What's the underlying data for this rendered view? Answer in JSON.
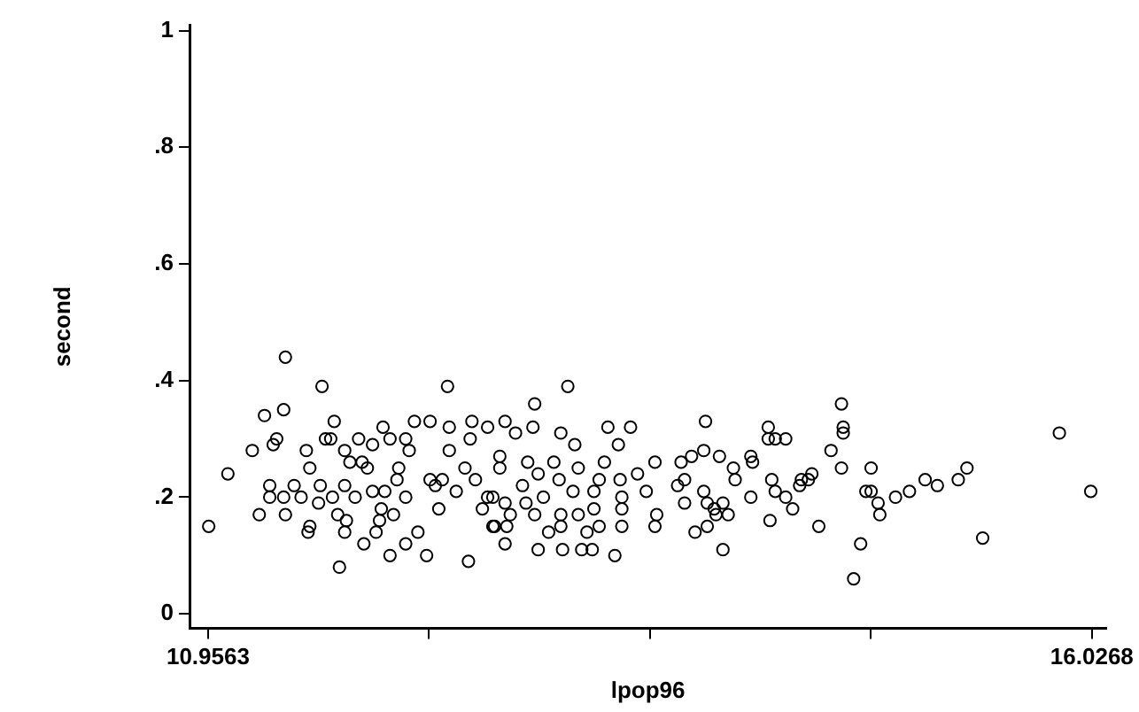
{
  "chart_data": {
    "type": "scatter",
    "xlabel": "lpop96",
    "ylabel": "second",
    "color": "#000000",
    "marker": "circle",
    "grid": false,
    "xlim": [
      10.85,
      16.11
    ],
    "ylim": [
      -0.025,
      1.01
    ],
    "xticks": [
      10.9563,
      {
        "value": 12.2239,
        "label": null
      },
      {
        "value": 13.4916,
        "label": null
      },
      {
        "value": 14.7592,
        "label": null
      },
      16.0268
    ],
    "yticks": [
      0,
      {
        "value": 0.2,
        "label": ".2"
      },
      {
        "value": 0.4,
        "label": ".4"
      },
      {
        "value": 0.6,
        "label": ".6"
      },
      {
        "value": 0.8,
        "label": ".8"
      },
      1
    ],
    "x": [
      10.96,
      11.07,
      11.21,
      11.28,
      11.39,
      11.4,
      11.25,
      11.31,
      11.31,
      11.35,
      11.33,
      11.4,
      11.39,
      11.61,
      11.68,
      11.71,
      11.54,
      11.53,
      11.45,
      11.52,
      11.54,
      11.6,
      11.63,
      11.66,
      11.74,
      11.75,
      11.7,
      11.74,
      11.77,
      11.82,
      11.84,
      11.87,
      11.9,
      11.85,
      11.92,
      11.94,
      11.96,
      12.0,
      12.05,
      12.09,
      12.11,
      12.09,
      12.14,
      12.23,
      12.33,
      12.34,
      12.34,
      12.0,
      12.09,
      12.21,
      12.16,
      12.45,
      12.46,
      12.47,
      12.43,
      12.38,
      12.28,
      12.26,
      12.53,
      12.59,
      12.56,
      12.63,
      11.8,
      11.74,
      11.9,
      11.97,
      12.04,
      11.95,
      12.02,
      12.23,
      12.3,
      12.49,
      12.56,
      11.59,
      11.67,
      11.49,
      13.02,
      12.83,
      12.66,
      12.72,
      12.82,
      12.98,
      13.06,
      13.25,
      13.38,
      13.31,
      13.23,
      13.52,
      12.94,
      12.79,
      12.63,
      12.76,
      12.85,
      12.97,
      13.08,
      13.2,
      13.32,
      13.42,
      13.47,
      13.33,
      13.17,
      13.05,
      12.88,
      12.78,
      12.66,
      12.59,
      12.69,
      12.83,
      12.98,
      13.08,
      13.17,
      12.6,
      12.67,
      12.91,
      12.98,
      13.13,
      13.2,
      13.33,
      13.33,
      12.66,
      12.85,
      12.99,
      13.1,
      13.16,
      13.29,
      13.53,
      13.52,
      13.69,
      13.65,
      13.67,
      13.69,
      13.73,
      13.8,
      13.81,
      13.89,
      13.8,
      13.82,
      13.86,
      13.91,
      13.94,
      13.87,
      13.82,
      13.75,
      13.91,
      13.97,
      13.98,
      14.07,
      14.08,
      14.07,
      14.17,
      14.17,
      14.21,
      14.27,
      14.19,
      14.21,
      14.27,
      14.31,
      14.18,
      14.35,
      14.4,
      14.59,
      14.6,
      14.6,
      14.53,
      14.59,
      14.76,
      14.42,
      14.36,
      14.73,
      14.76,
      14.8,
      14.81,
      14.9,
      14.98,
      15.07,
      15.14,
      15.26,
      15.31,
      14.46,
      14.7,
      14.66,
      15.4,
      15.84,
      16.02
    ],
    "values": [
      0.15,
      0.24,
      0.28,
      0.34,
      0.35,
      0.44,
      0.17,
      0.22,
      0.2,
      0.3,
      0.29,
      0.17,
      0.2,
      0.39,
      0.33,
      0.08,
      0.15,
      0.14,
      0.22,
      0.28,
      0.25,
      0.22,
      0.3,
      0.3,
      0.28,
      0.16,
      0.17,
      0.14,
      0.26,
      0.3,
      0.26,
      0.25,
      0.29,
      0.12,
      0.14,
      0.16,
      0.32,
      0.3,
      0.25,
      0.2,
      0.28,
      0.3,
      0.33,
      0.33,
      0.39,
      0.28,
      0.32,
      0.1,
      0.12,
      0.1,
      0.14,
      0.09,
      0.3,
      0.33,
      0.25,
      0.21,
      0.18,
      0.22,
      0.18,
      0.15,
      0.32,
      0.27,
      0.2,
      0.22,
      0.21,
      0.21,
      0.23,
      0.18,
      0.17,
      0.23,
      0.23,
      0.23,
      0.2,
      0.19,
      0.2,
      0.2,
      0.39,
      0.36,
      0.33,
      0.31,
      0.32,
      0.31,
      0.29,
      0.32,
      0.32,
      0.29,
      0.26,
      0.26,
      0.26,
      0.26,
      0.25,
      0.22,
      0.24,
      0.23,
      0.25,
      0.23,
      0.23,
      0.24,
      0.21,
      0.2,
      0.21,
      0.21,
      0.2,
      0.19,
      0.19,
      0.2,
      0.17,
      0.17,
      0.17,
      0.17,
      0.18,
      0.15,
      0.15,
      0.14,
      0.15,
      0.14,
      0.15,
      0.15,
      0.18,
      0.12,
      0.11,
      0.11,
      0.11,
      0.11,
      0.1,
      0.17,
      0.15,
      0.19,
      0.22,
      0.26,
      0.23,
      0.27,
      0.28,
      0.33,
      0.27,
      0.21,
      0.19,
      0.18,
      0.19,
      0.17,
      0.17,
      0.15,
      0.14,
      0.11,
      0.25,
      0.23,
      0.27,
      0.26,
      0.2,
      0.32,
      0.3,
      0.3,
      0.3,
      0.23,
      0.21,
      0.2,
      0.18,
      0.16,
      0.22,
      0.23,
      0.36,
      0.32,
      0.31,
      0.28,
      0.25,
      0.25,
      0.24,
      0.23,
      0.21,
      0.21,
      0.19,
      0.17,
      0.2,
      0.21,
      0.23,
      0.22,
      0.23,
      0.25,
      0.15,
      0.12,
      0.06,
      0.13,
      0.31,
      0.21
    ]
  }
}
